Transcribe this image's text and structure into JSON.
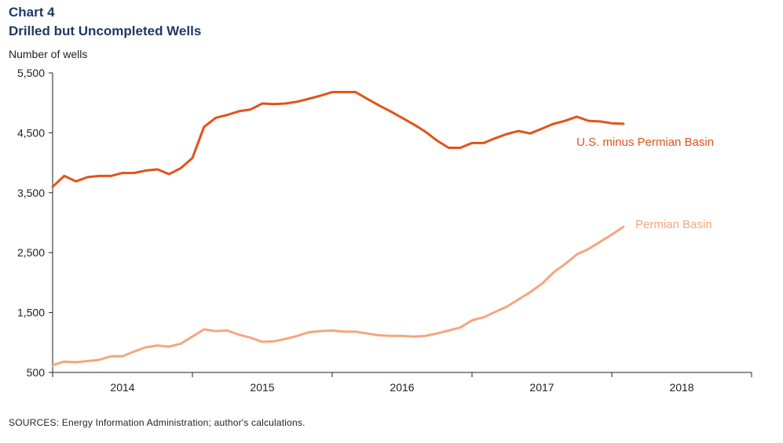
{
  "header": {
    "chart_number": "Chart 4",
    "title": "Drilled but Uncompleted Wells",
    "y_axis_label": "Number of wells"
  },
  "footer": {
    "source": "SOURCES: Energy Information  Administration; author's calculations."
  },
  "colors": {
    "title": "#1f3864",
    "us_minus_permian": "#e0531a",
    "permian": "#f4a67e",
    "axis": "#222222"
  },
  "chart_data": {
    "type": "line",
    "title": "Drilled but Uncompleted Wells",
    "ylabel": "Number of wells",
    "xlabel": "",
    "ylim": [
      500,
      5500
    ],
    "yticks": [
      500,
      1500,
      2500,
      3500,
      4500,
      5500
    ],
    "ytick_labels": [
      "500",
      "1,500",
      "2,500",
      "3,500",
      "4,500",
      "5,500"
    ],
    "xlim": [
      2013.9167,
      2018.9167
    ],
    "x_year_labels": [
      "2014",
      "2015",
      "2016",
      "2017",
      "2018"
    ],
    "x_start_year": 2013.9167,
    "x_step_years": 0.08333,
    "series": [
      {
        "name": "U.S. minus Permian Basin",
        "label": "U.S. minus Permian Basin",
        "values": [
          3600,
          3780,
          3690,
          3760,
          3780,
          3780,
          3830,
          3830,
          3870,
          3890,
          3810,
          3910,
          4080,
          4600,
          4750,
          4800,
          4860,
          4890,
          4990,
          4980,
          4990,
          5020,
          5070,
          5120,
          5180,
          5180,
          5180,
          5070,
          4960,
          4860,
          4750,
          4640,
          4520,
          4370,
          4250,
          4250,
          4330,
          4330,
          4410,
          4480,
          4530,
          4490,
          4570,
          4650,
          4700,
          4770,
          4700,
          4690,
          4660,
          4650
        ]
      },
      {
        "name": "Permian Basin",
        "label": "Permian Basin",
        "values": [
          620,
          680,
          670,
          690,
          710,
          770,
          770,
          850,
          920,
          950,
          930,
          980,
          1100,
          1220,
          1190,
          1200,
          1130,
          1080,
          1010,
          1020,
          1060,
          1110,
          1170,
          1190,
          1200,
          1180,
          1180,
          1150,
          1120,
          1110,
          1110,
          1100,
          1110,
          1150,
          1200,
          1250,
          1370,
          1420,
          1510,
          1600,
          1720,
          1840,
          1980,
          2170,
          2310,
          2470,
          2560,
          2680,
          2800,
          2930
        ]
      }
    ]
  }
}
